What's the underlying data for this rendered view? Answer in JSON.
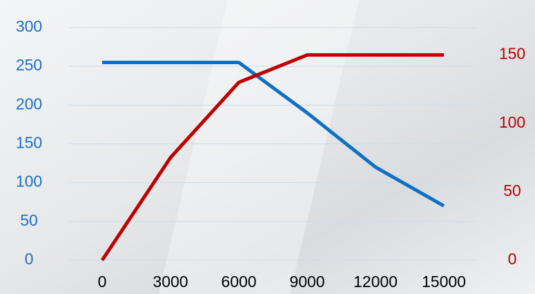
{
  "chart_data": {
    "type": "line",
    "x": [
      0,
      3000,
      6000,
      9000,
      12000,
      15000
    ],
    "xlim": [
      0,
      15000
    ],
    "xticks": [
      0,
      3000,
      6000,
      9000,
      12000,
      15000
    ],
    "ylim": [
      0,
      300
    ],
    "yticks": [
      0,
      50,
      100,
      150,
      200,
      250,
      300
    ],
    "y2lim": [
      0,
      170
    ],
    "y2ticks": [
      0,
      50,
      100,
      150
    ],
    "grid": true,
    "ytick_color": "#1c6fc4",
    "y2tick_color": "#c00000",
    "series": [
      {
        "color": "#0f6fc6",
        "values": [
          255,
          255,
          255,
          190,
          120,
          70
        ]
      },
      {
        "color": "#c00000",
        "axis": "y2",
        "values": [
          0,
          75,
          130,
          150,
          150,
          150
        ]
      }
    ]
  }
}
